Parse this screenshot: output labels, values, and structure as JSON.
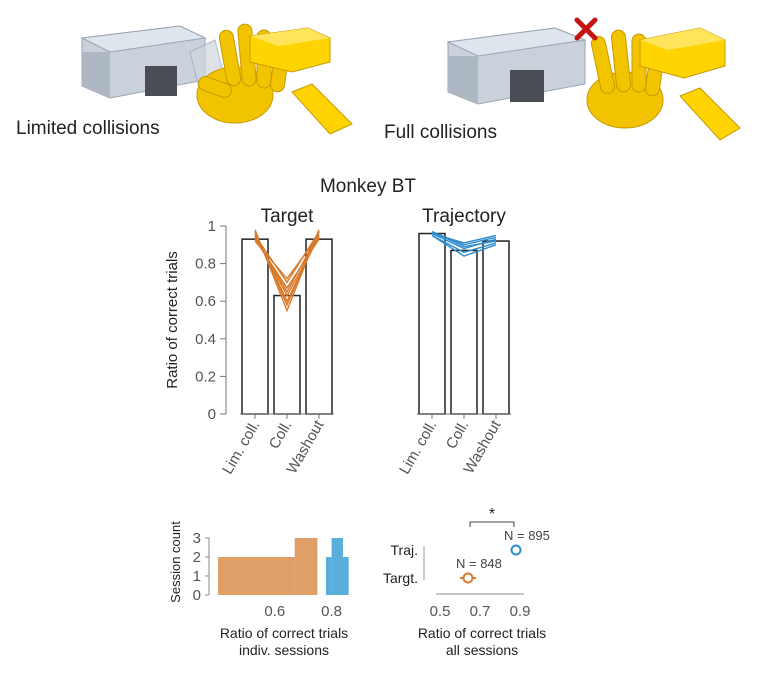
{
  "illustrations": {
    "left_caption": "Limited collisions",
    "right_caption": "Full collisions",
    "colors": {
      "hand": "#f2c400",
      "hand_dark": "#c79a00",
      "block": "#ffd400",
      "fixture": "#b9c3cf",
      "cross": "#c41414"
    },
    "icons": [
      "hand-grasp-illustration",
      "fixture-illustration",
      "collision-cross-icon"
    ]
  },
  "colors": {
    "target": "#d97a2a",
    "target_hist": "#df9f66",
    "trajectory": "#2e8ccf",
    "trajectory_hist": "#5aaedc"
  },
  "chart_data": [
    {
      "type": "bar",
      "title": "Monkey BT",
      "subtitle": "Target",
      "ylabel": "Ratio of correct trials",
      "ylim": [
        0,
        1
      ],
      "yticks": [
        "0",
        "0.2",
        "0.4",
        "0.6",
        "0.8",
        "1"
      ],
      "categories": [
        "Lim. coll.",
        "Coll.",
        "Washout"
      ],
      "values": [
        0.93,
        0.63,
        0.93
      ],
      "sessions": [
        [
          0.98,
          0.55,
          0.98
        ],
        [
          0.97,
          0.58,
          0.97
        ],
        [
          0.96,
          0.6,
          0.95
        ],
        [
          0.95,
          0.63,
          0.94
        ],
        [
          0.94,
          0.65,
          0.96
        ],
        [
          0.93,
          0.67,
          0.93
        ],
        [
          0.95,
          0.7,
          0.97
        ],
        [
          0.92,
          0.72,
          0.95
        ]
      ]
    },
    {
      "type": "bar",
      "subtitle": "Trajectory",
      "ylim": [
        0,
        1
      ],
      "categories": [
        "Lim. coll.",
        "Coll.",
        "Washout"
      ],
      "values": [
        0.96,
        0.87,
        0.92
      ],
      "sessions": [
        [
          0.97,
          0.9,
          0.94
        ],
        [
          0.96,
          0.88,
          0.93
        ],
        [
          0.95,
          0.86,
          0.91
        ],
        [
          0.97,
          0.89,
          0.92
        ],
        [
          0.95,
          0.84,
          0.9
        ],
        [
          0.96,
          0.91,
          0.95
        ]
      ]
    },
    {
      "type": "histogram",
      "ylabel": "Session count",
      "xlabel_line1": "Ratio of correct trials",
      "xlabel_line2": "indiv. sessions",
      "xlim": [
        0.4,
        0.9
      ],
      "ylim": [
        0,
        3
      ],
      "yticks": [
        "0",
        "1",
        "2",
        "3"
      ],
      "xticks": [
        0.6,
        0.8
      ],
      "xtick_labels": [
        "0.6",
        "0.8"
      ],
      "target_bins": [
        {
          "x0": 0.4,
          "x1": 0.67,
          "count": 2
        },
        {
          "x0": 0.67,
          "x1": 0.75,
          "count": 3
        }
      ],
      "trajectory_bins": [
        {
          "x0": 0.78,
          "x1": 0.8,
          "count": 2
        },
        {
          "x0": 0.8,
          "x1": 0.84,
          "count": 3
        },
        {
          "x0": 0.84,
          "x1": 0.86,
          "count": 2
        }
      ]
    },
    {
      "type": "scatter",
      "xlabel_line1": "Ratio of correct trials",
      "xlabel_line2": "all sessions",
      "xlim": [
        0.5,
        0.9
      ],
      "xticks": [
        0.5,
        0.7,
        0.9
      ],
      "xtick_labels": [
        "0.5",
        "0.7",
        "0.9"
      ],
      "categories": [
        "Targt.",
        "Traj."
      ],
      "points": [
        {
          "name": "Targt.",
          "value": 0.64,
          "ci": [
            0.6,
            0.68
          ],
          "n_label": "N = 848"
        },
        {
          "name": "Traj.",
          "value": 0.88,
          "ci": [
            0.86,
            0.9
          ],
          "n_label": "N = 895"
        }
      ],
      "significance": "*"
    }
  ]
}
